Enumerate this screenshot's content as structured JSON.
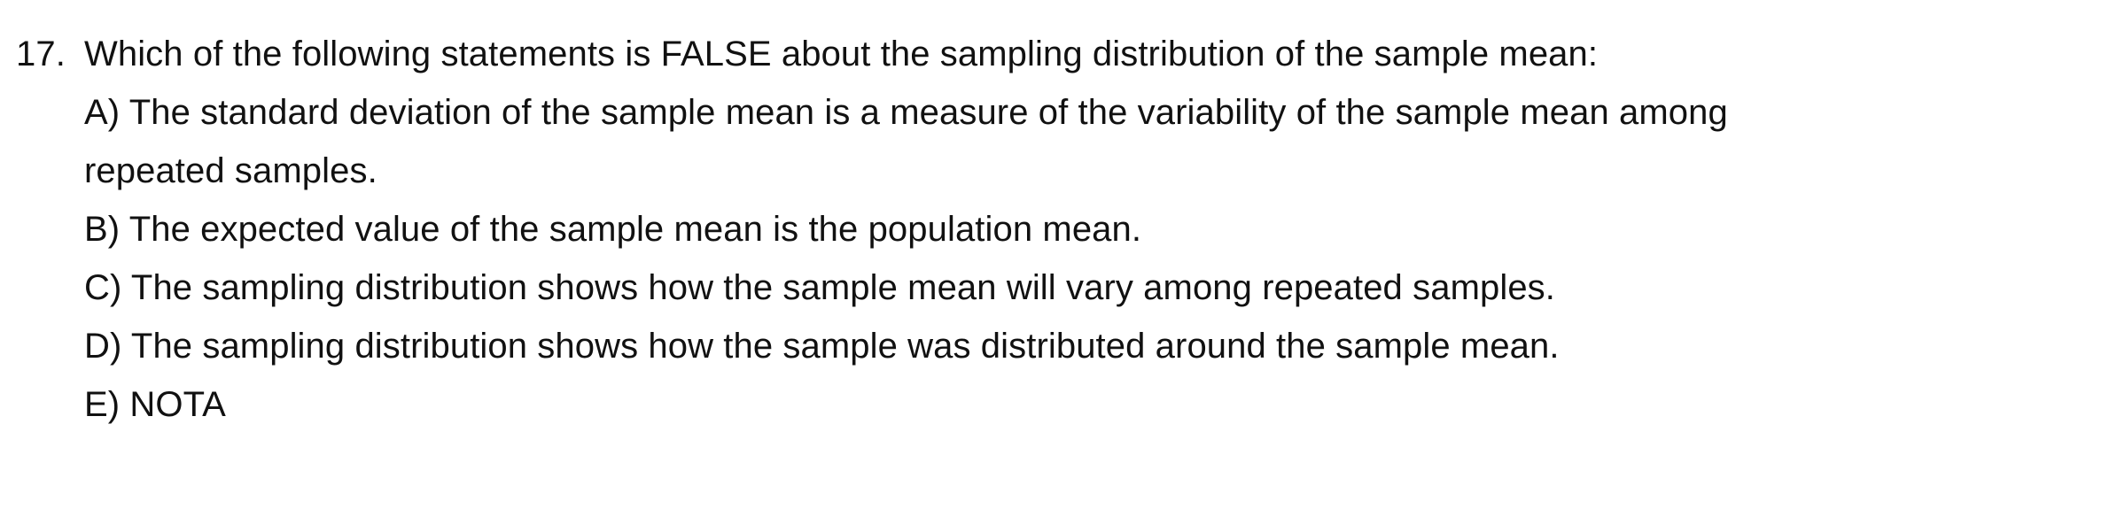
{
  "question": {
    "number": "17.",
    "text": "Which of the following statements is FALSE about the sampling distribution of the sample mean:",
    "options": [
      {
        "letter": "A)",
        "text": "The standard deviation of the sample mean is a measure of the variability of the sample mean among repeated samples."
      },
      {
        "letter": "B)",
        "text": "The expected value of the sample mean is the population mean."
      },
      {
        "letter": "C)",
        "text": "The sampling distribution shows how the sample mean will vary among repeated samples."
      },
      {
        "letter": "D)",
        "text": "The sampling distribution shows how the sample was distributed around the sample mean."
      },
      {
        "letter": "E)",
        "text": "NOTA"
      }
    ]
  }
}
